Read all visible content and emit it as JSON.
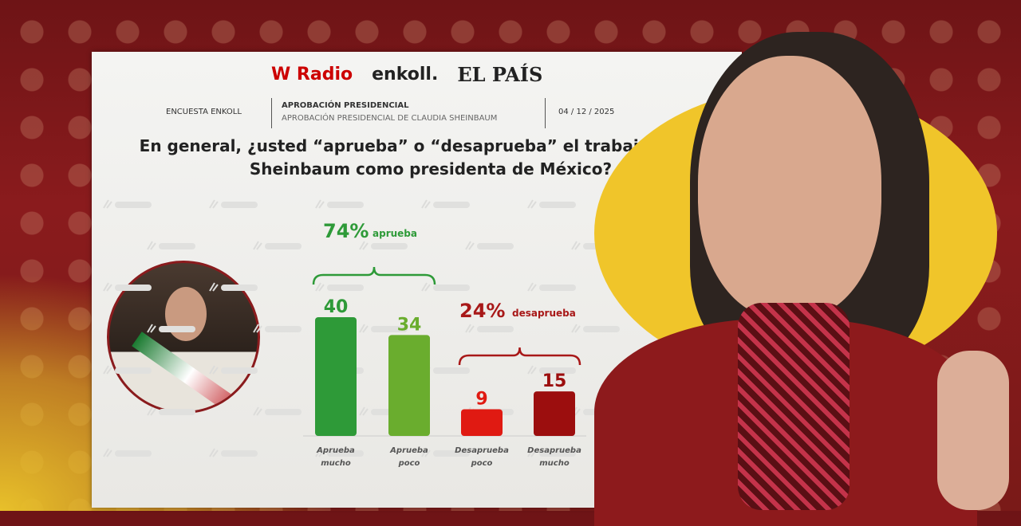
{
  "header": {
    "logos": [
      "W Radio",
      "enkoll.",
      "EL PAÍS"
    ],
    "survey": "ENCUESTA ENKOLL",
    "topic_title": "APROBACIÓN PRESIDENCIAL",
    "topic_subtitle": "APROBACIÓN PRESIDENCIAL DE CLAUDIA SHEINBAUM",
    "date": "04 / 12 / 2025"
  },
  "question": "En general, ¿usted “aprueba” o “desaprueba” el trabajo Claudia Sheinbaum como presidenta de México?",
  "watermark": "enkoll.",
  "chart_data": {
    "type": "bar",
    "title": "",
    "categories": [
      "Aprueba mucho",
      "Aprueba poco",
      "Desaprueba poco",
      "Desaprueba mucho"
    ],
    "values": [
      40,
      34,
      9,
      15
    ],
    "colors": [
      "#2e9a38",
      "#6aad2e",
      "#e01a12",
      "#9c0e0e"
    ],
    "groups": [
      {
        "percent": "74%",
        "label": "aprueba",
        "members": [
          0,
          1
        ],
        "color": "#2e9a38"
      },
      {
        "percent": "24%",
        "label": "desaprueba",
        "members": [
          2,
          3
        ],
        "color": "#a81818"
      }
    ],
    "ylim": [
      0,
      40
    ],
    "grid": false,
    "legend": "none"
  }
}
